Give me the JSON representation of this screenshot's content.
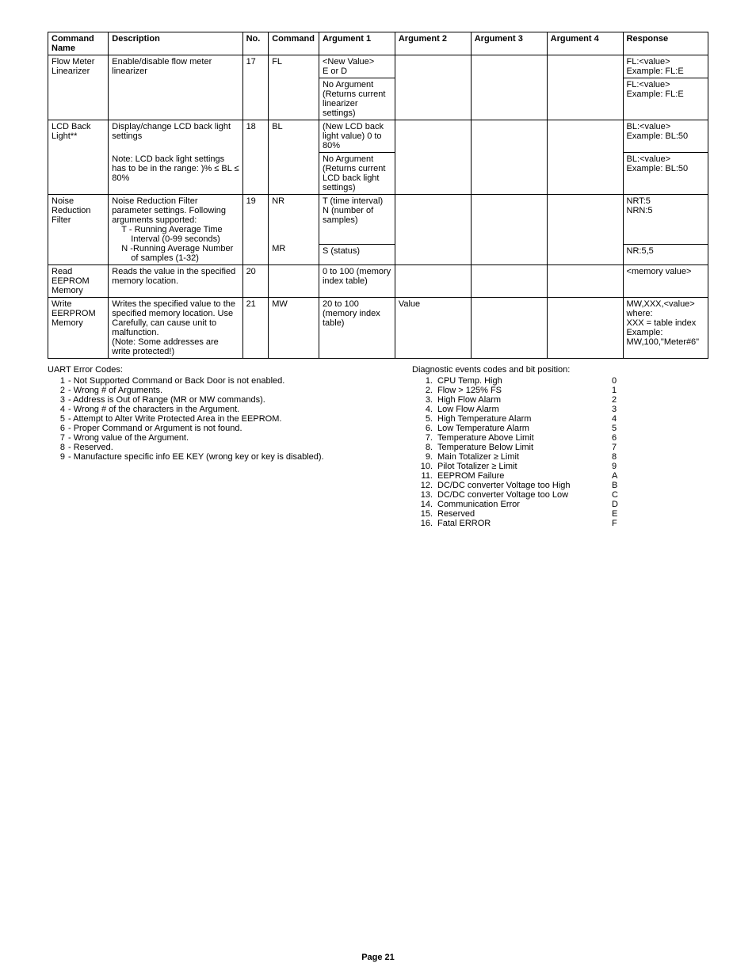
{
  "table": {
    "headers": {
      "name": "Command Name",
      "desc": "Description",
      "no": "No.",
      "cmd": "Command",
      "arg1": "Argument 1",
      "arg2": "Argument 2",
      "arg3": "Argument 3",
      "arg4": "Argument 4",
      "resp": "Response"
    },
    "r1": {
      "name": "Flow Meter Linearizer",
      "desc": "Enable/disable flow meter linearizer",
      "no": "17",
      "cmd": "FL",
      "arg1": "<New Value>\nE or D",
      "resp": "FL:<value>\nExample: FL:E"
    },
    "r1b": {
      "arg1": "No Argument\n(Returns current linearizer settings)",
      "resp": "FL:<value>\nExample: FL:E"
    },
    "r2": {
      "name": "LCD Back Light**",
      "desc": "Display/change LCD back light settings",
      "desc2": "Note: LCD back light settings has to be in the range: )% ≤ BL ≤ 80%",
      "no": "18",
      "cmd": "BL",
      "arg1": "(New LCD back light value) 0 to 80%",
      "resp": "BL:<value>\nExample: BL:50"
    },
    "r2b": {
      "arg1": "No Argument\n(Returns current LCD back light settings)",
      "resp": "BL:<value>\nExample: BL:50"
    },
    "r3": {
      "name": "Noise Reduction Filter",
      "desc": "Noise Reduction Filter parameter settings. Following arguments supported:",
      "sub1": "T - Running Average Time",
      "sub1b": "Interval (0-99 seconds)",
      "sub2": "N -Running Average Number",
      "sub2b": "of samples (1-32)",
      "no": "19",
      "cmd": "NR",
      "cmd2": "MR",
      "arg1": "T (time interval)\nN (number of samples)",
      "resp": "NRT:5\nNRN:5"
    },
    "r3b": {
      "arg1": "S (status)",
      "resp": "NR:5,5"
    },
    "r4": {
      "name": "Read EEPROM Memory",
      "desc": "Reads the value in the specified memory location.",
      "no": "20",
      "arg1": "0 to 100 (memory index table)",
      "resp": "<memory value>"
    },
    "r5": {
      "name": "Write EERPROM Memory",
      "desc": "Writes the specified value to the specified memory location. Use Carefully, can cause unit to malfunction.\n(Note: Some addresses are write protected!)",
      "no": "21",
      "cmd": "MW",
      "arg1": "20 to 100 (memory index table)",
      "arg2": "Value",
      "resp": "MW,XXX,<value>\nwhere:\nXXX = table index\nExample:\nMW,100,\"Meter#6\""
    }
  },
  "uart": {
    "title": "UART Error Codes:",
    "items": [
      {
        "n": "1",
        "t": "- Not Supported Command or Back Door is not enabled."
      },
      {
        "n": "2",
        "t": "- Wrong # of Arguments."
      },
      {
        "n": "3",
        "t": "- Address is Out of Range (MR or MW commands)."
      },
      {
        "n": "4",
        "t": "- Wrong # of the characters in the Argument."
      },
      {
        "n": "5",
        "t": "- Attempt to Alter Write Protected Area in the EEPROM."
      },
      {
        "n": "6",
        "t": "- Proper Command or Argument is not found."
      },
      {
        "n": "7",
        "t": "- Wrong value of the Argument."
      },
      {
        "n": "8",
        "t": "- Reserved."
      },
      {
        "n": "9",
        "t": "- Manufacture specific info EE KEY (wrong key or key is disabled)."
      }
    ]
  },
  "diag": {
    "title": "Diagnostic events codes and bit position:",
    "items": [
      {
        "n": "1.",
        "t": "CPU Temp. High",
        "c": "0"
      },
      {
        "n": "2.",
        "t": "Flow > 125% FS",
        "c": "1"
      },
      {
        "n": "3.",
        "t": "High Flow Alarm",
        "c": "2"
      },
      {
        "n": "4.",
        "t": "Low Flow Alarm",
        "c": "3"
      },
      {
        "n": "5.",
        "t": "High Temperature Alarm",
        "c": "4"
      },
      {
        "n": "6.",
        "t": "Low Temperature Alarm",
        "c": "5"
      },
      {
        "n": "7.",
        "t": "Temperature Above Limit",
        "c": "6"
      },
      {
        "n": "8.",
        "t": "Temperature Below Limit",
        "c": "7"
      },
      {
        "n": "9.",
        "t": "Main Totalizer ≥  Limit",
        "c": "8"
      },
      {
        "n": "10.",
        "t": "Pilot Totalizer ≥  Limit",
        "c": "9"
      },
      {
        "n": "11.",
        "t": "EEPROM Failure",
        "c": "A"
      },
      {
        "n": "12.",
        "t": "DC/DC converter Voltage too High",
        "c": "B"
      },
      {
        "n": "13.",
        "t": "DC/DC converter Voltage too Low",
        "c": "C"
      },
      {
        "n": "14.",
        "t": "Communication Error",
        "c": "D"
      },
      {
        "n": "15.",
        "t": "Reserved",
        "c": "E"
      },
      {
        "n": "16.",
        "t": "Fatal ERROR",
        "c": "F"
      }
    ]
  },
  "page": "Page 21"
}
